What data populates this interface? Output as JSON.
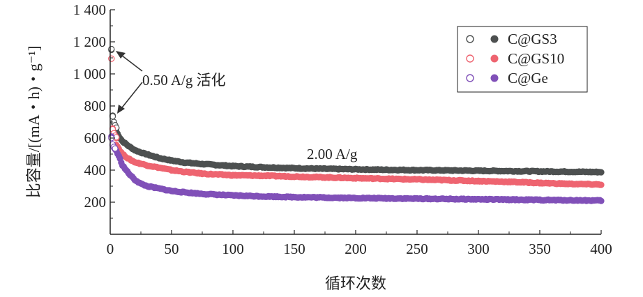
{
  "chart_data": {
    "type": "scatter",
    "xlabel": "循环次数",
    "ylabel": "比容量/[(mA・h)・g⁻¹]",
    "xlim": [
      0,
      400
    ],
    "ylim": [
      0,
      1400
    ],
    "x_ticks": [
      "0",
      "50",
      "100",
      "150",
      "200",
      "250",
      "300",
      "350",
      "400"
    ],
    "y_ticks": [
      "200",
      "400",
      "600",
      "800",
      "1 000",
      "1 200",
      "1 400"
    ],
    "grid": false,
    "legend_position": "top-right",
    "annotations": [
      "0.50 A/g 活化",
      "2.00 A/g"
    ],
    "series": [
      {
        "name": "C@GS3",
        "color": "#4d5050",
        "activation_charge": [
          [
            1,
            1155
          ],
          [
            2,
            735
          ],
          [
            3,
            700
          ],
          [
            4,
            680
          ],
          [
            5,
            665
          ]
        ],
        "activation_discharge": [
          [
            1,
            1150
          ],
          [
            2,
            740
          ],
          [
            3,
            695
          ],
          [
            4,
            675
          ],
          [
            5,
            662
          ]
        ],
        "x": [
          5,
          8,
          10,
          15,
          20,
          25,
          30,
          40,
          50,
          60,
          75,
          100,
          125,
          150,
          175,
          200,
          225,
          250,
          275,
          300,
          325,
          350,
          375,
          400
        ],
        "y": [
          640,
          600,
          580,
          550,
          525,
          510,
          498,
          475,
          460,
          448,
          438,
          425,
          418,
          412,
          408,
          405,
          402,
          400,
          398,
          396,
          394,
          392,
          390,
          388
        ]
      },
      {
        "name": "C@GS10",
        "color": "#ee6470",
        "activation_charge": [
          [
            1,
            1095
          ],
          [
            2,
            655
          ],
          [
            3,
            630
          ],
          [
            4,
            615
          ],
          [
            5,
            605
          ]
        ],
        "activation_discharge": [
          [
            1,
            1095
          ],
          [
            2,
            660
          ],
          [
            3,
            628
          ],
          [
            4,
            612
          ],
          [
            5,
            600
          ]
        ],
        "x": [
          5,
          8,
          10,
          15,
          20,
          25,
          30,
          40,
          50,
          60,
          75,
          100,
          125,
          150,
          175,
          200,
          225,
          250,
          275,
          300,
          325,
          350,
          375,
          400
        ],
        "y": [
          560,
          520,
          500,
          470,
          450,
          440,
          430,
          415,
          400,
          390,
          378,
          368,
          365,
          360,
          355,
          350,
          346,
          342,
          337,
          332,
          327,
          320,
          314,
          310
        ]
      },
      {
        "name": "C@Ge",
        "color": "#8050b8",
        "activation_charge": [
          [
            1,
            600
          ],
          [
            2,
            560
          ],
          [
            3,
            545
          ],
          [
            4,
            535
          ]
        ],
        "activation_discharge": [
          [
            1,
            610
          ],
          [
            2,
            555
          ],
          [
            3,
            540
          ],
          [
            4,
            530
          ]
        ],
        "x": [
          5,
          8,
          10,
          15,
          20,
          25,
          30,
          40,
          50,
          60,
          75,
          100,
          125,
          150,
          175,
          200,
          225,
          250,
          275,
          300,
          325,
          350,
          375,
          400
        ],
        "y": [
          520,
          470,
          430,
          380,
          340,
          315,
          300,
          285,
          270,
          262,
          252,
          242,
          236,
          232,
          229,
          226,
          224,
          222,
          220,
          218,
          216,
          214,
          212,
          210
        ]
      }
    ]
  }
}
